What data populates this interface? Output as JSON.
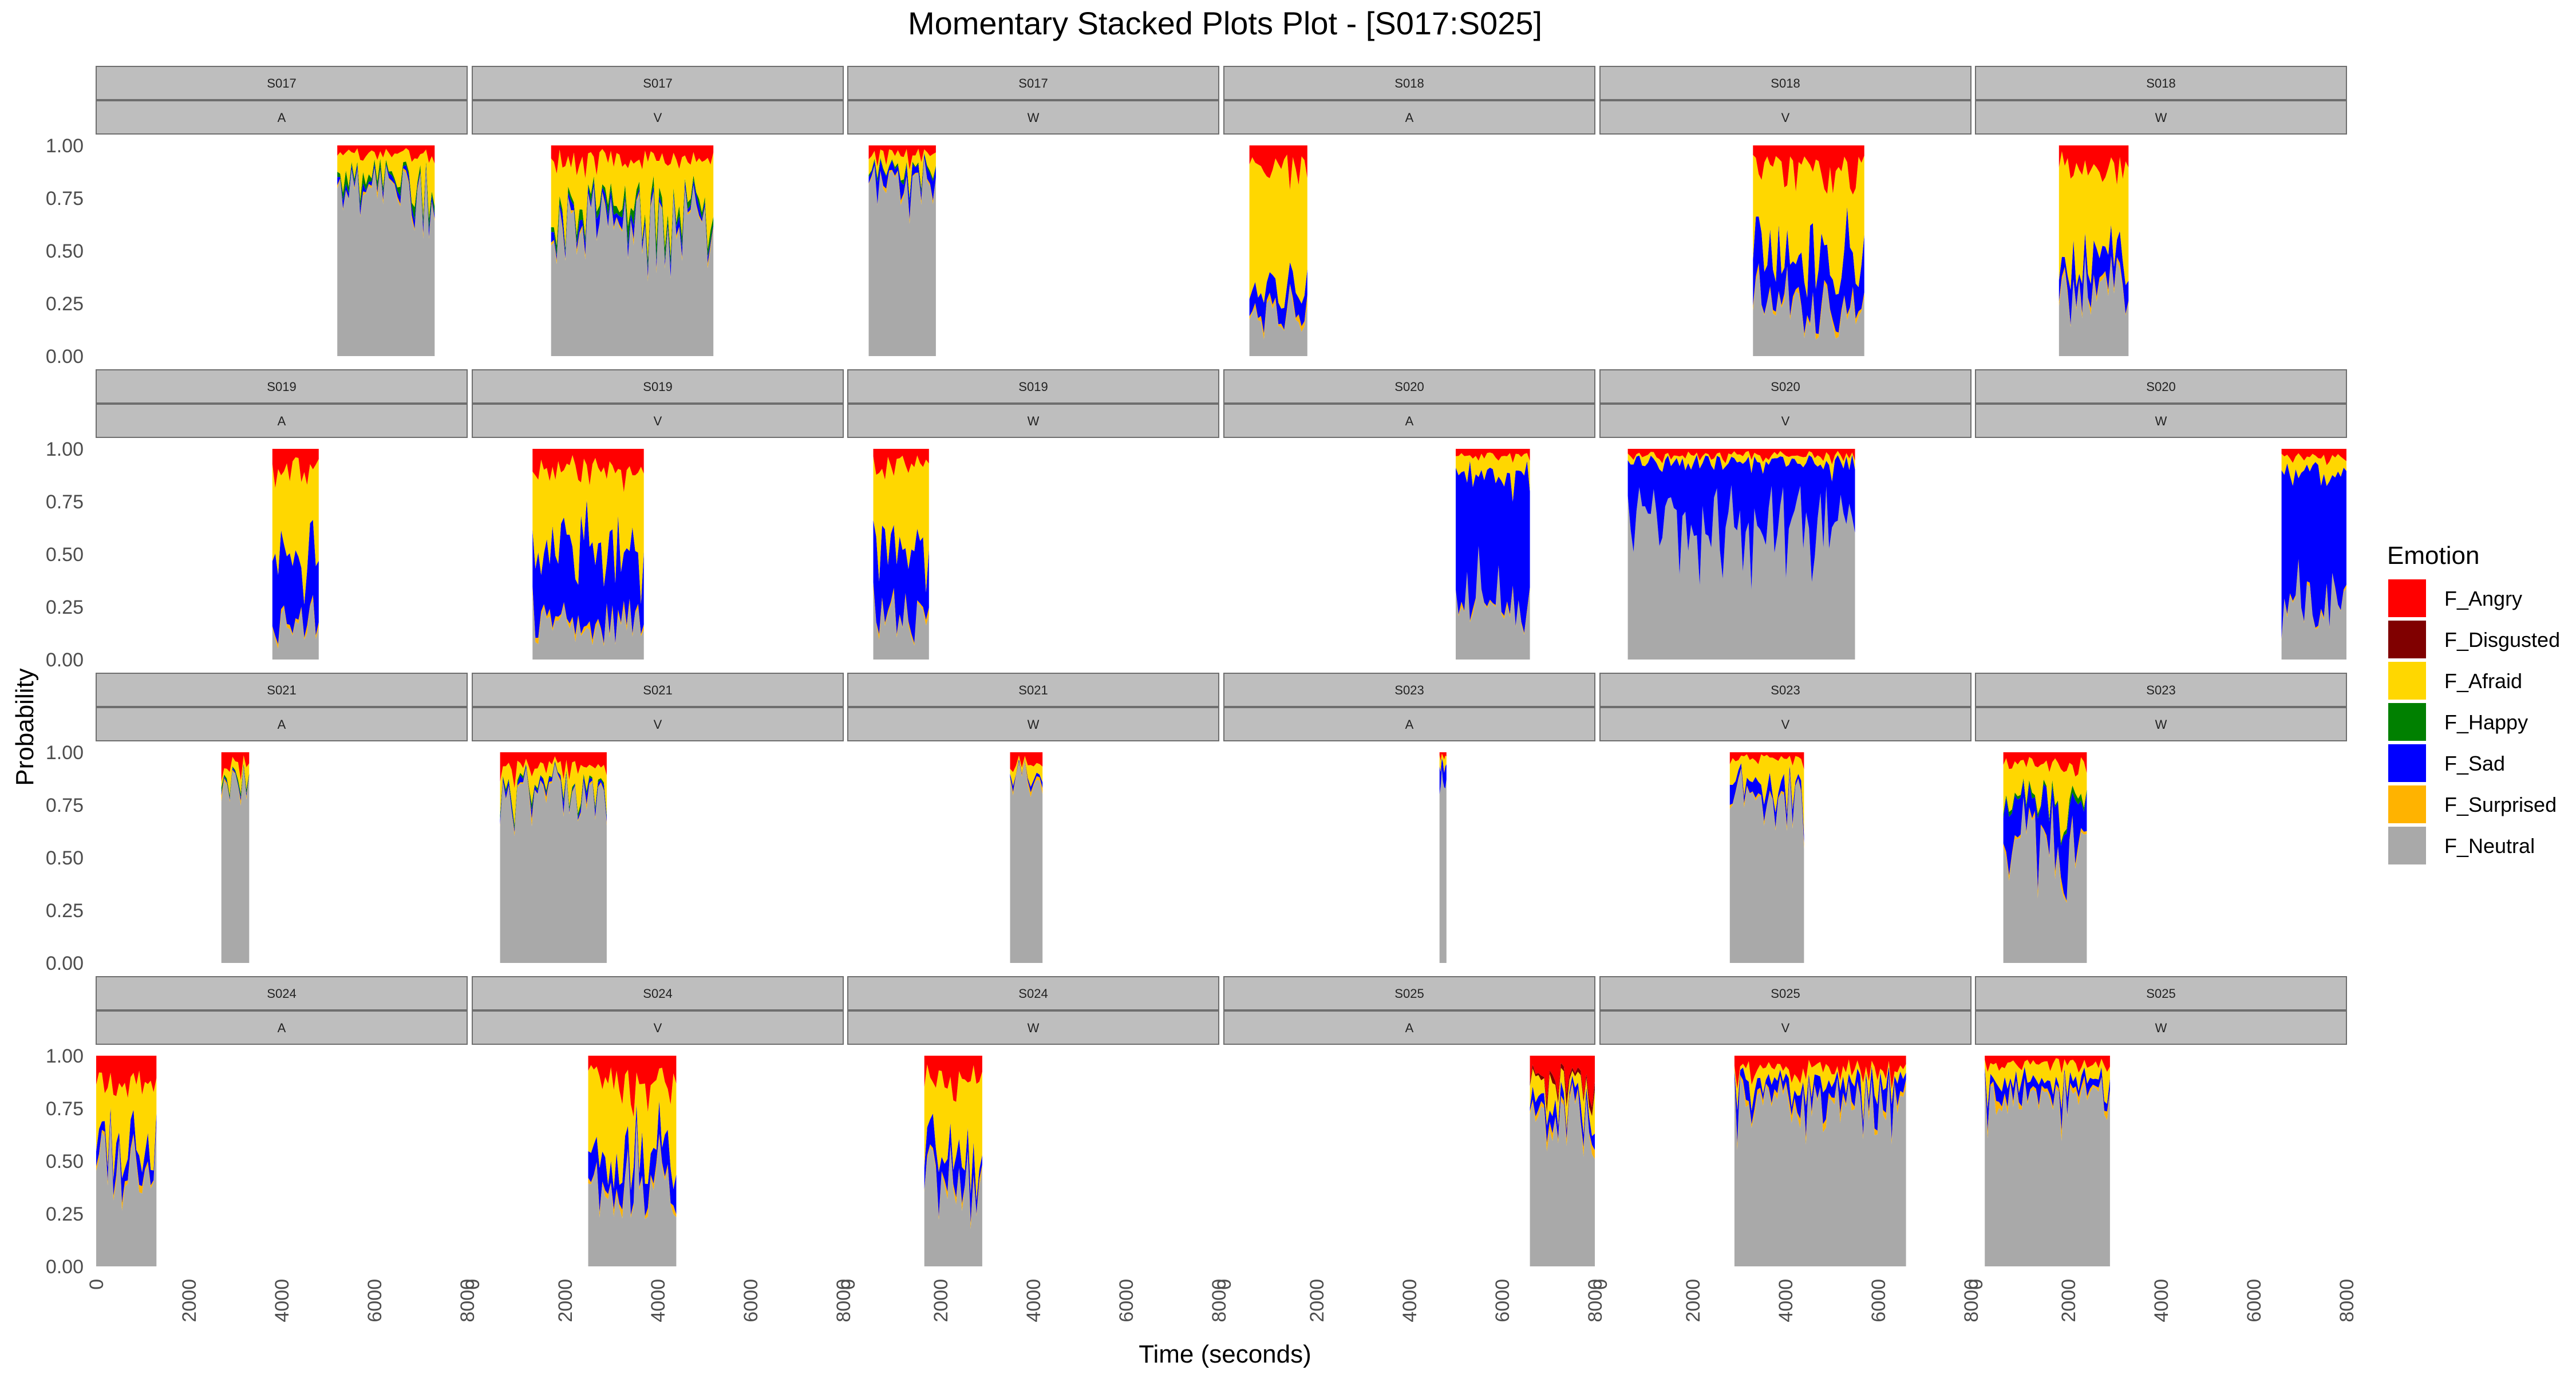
{
  "chart_data": {
    "type": "area",
    "title": "Momentary Stacked Plots Plot - [S017:S025]",
    "xlabel": "Time (seconds)",
    "ylabel": "Probability",
    "xlim": [
      0,
      8000
    ],
    "ylim": [
      0,
      1
    ],
    "x_ticks": [
      "0",
      "2000",
      "4000",
      "6000",
      "8000"
    ],
    "y_ticks": [
      "0.00",
      "0.25",
      "0.50",
      "0.75",
      "1.00"
    ],
    "legend": {
      "title": "Emotion",
      "position": "right",
      "items": [
        {
          "name": "F_Angry",
          "color": "#ff0000"
        },
        {
          "name": "F_Disgusted",
          "color": "#800000"
        },
        {
          "name": "F_Afraid",
          "color": "#ffd700"
        },
        {
          "name": "F_Happy",
          "color": "#008000"
        },
        {
          "name": "F_Sad",
          "color": "#0000ff"
        },
        {
          "name": "F_Surprised",
          "color": "#ffb300"
        },
        {
          "name": "F_Neutral",
          "color": "#a9a9a9"
        }
      ]
    },
    "stack_order_bottom_to_top": [
      "F_Neutral",
      "F_Surprised",
      "F_Sad",
      "F_Happy",
      "F_Afraid",
      "F_Disgusted",
      "F_Angry"
    ],
    "panels": [
      {
        "subject": "S017",
        "condition": "A",
        "x_start": 5200,
        "x_end": 7300,
        "mean": {
          "F_Angry": 0.04,
          "F_Disgusted": 0.0,
          "F_Afraid": 0.12,
          "F_Happy": 0.03,
          "F_Sad": 0.02,
          "F_Surprised": 0.01,
          "F_Neutral": 0.78
        }
      },
      {
        "subject": "S017",
        "condition": "V",
        "x_start": 1700,
        "x_end": 5200,
        "mean": {
          "F_Angry": 0.06,
          "F_Disgusted": 0.0,
          "F_Afraid": 0.22,
          "F_Happy": 0.03,
          "F_Sad": 0.03,
          "F_Surprised": 0.01,
          "F_Neutral": 0.65
        }
      },
      {
        "subject": "S017",
        "condition": "W",
        "x_start": 450,
        "x_end": 1900,
        "mean": {
          "F_Angry": 0.05,
          "F_Disgusted": 0.0,
          "F_Afraid": 0.06,
          "F_Happy": 0.01,
          "F_Sad": 0.05,
          "F_Surprised": 0.01,
          "F_Neutral": 0.82
        }
      },
      {
        "subject": "S018",
        "condition": "A",
        "x_start": 550,
        "x_end": 1800,
        "mean": {
          "F_Angry": 0.12,
          "F_Disgusted": 0.0,
          "F_Afraid": 0.58,
          "F_Happy": 0.0,
          "F_Sad": 0.1,
          "F_Surprised": 0.02,
          "F_Neutral": 0.18
        }
      },
      {
        "subject": "S018",
        "condition": "V",
        "x_start": 3300,
        "x_end": 5700,
        "mean": {
          "F_Angry": 0.12,
          "F_Disgusted": 0.0,
          "F_Afraid": 0.42,
          "F_Happy": 0.0,
          "F_Sad": 0.22,
          "F_Surprised": 0.02,
          "F_Neutral": 0.22
        }
      },
      {
        "subject": "S018",
        "condition": "W",
        "x_start": 1800,
        "x_end": 3300,
        "mean": {
          "F_Angry": 0.1,
          "F_Disgusted": 0.0,
          "F_Afraid": 0.5,
          "F_Happy": 0.0,
          "F_Sad": 0.1,
          "F_Surprised": 0.02,
          "F_Neutral": 0.28
        }
      },
      {
        "subject": "S019",
        "condition": "A",
        "x_start": 3800,
        "x_end": 4800,
        "mean": {
          "F_Angry": 0.1,
          "F_Disgusted": 0.0,
          "F_Afraid": 0.42,
          "F_Happy": 0.0,
          "F_Sad": 0.28,
          "F_Surprised": 0.02,
          "F_Neutral": 0.18
        }
      },
      {
        "subject": "S019",
        "condition": "V",
        "x_start": 1300,
        "x_end": 3700,
        "mean": {
          "F_Angry": 0.1,
          "F_Disgusted": 0.0,
          "F_Afraid": 0.4,
          "F_Happy": 0.0,
          "F_Sad": 0.32,
          "F_Surprised": 0.02,
          "F_Neutral": 0.16
        }
      },
      {
        "subject": "S019",
        "condition": "W",
        "x_start": 550,
        "x_end": 1750,
        "mean": {
          "F_Angry": 0.08,
          "F_Disgusted": 0.0,
          "F_Afraid": 0.4,
          "F_Happy": 0.0,
          "F_Sad": 0.3,
          "F_Surprised": 0.02,
          "F_Neutral": 0.2
        }
      },
      {
        "subject": "S020",
        "condition": "A",
        "x_start": 5000,
        "x_end": 6600,
        "mean": {
          "F_Angry": 0.03,
          "F_Disgusted": 0.0,
          "F_Afraid": 0.08,
          "F_Happy": 0.0,
          "F_Sad": 0.62,
          "F_Surprised": 0.01,
          "F_Neutral": 0.26
        }
      },
      {
        "subject": "S020",
        "condition": "V",
        "x_start": 600,
        "x_end": 5500,
        "mean": {
          "F_Angry": 0.03,
          "F_Disgusted": 0.0,
          "F_Afraid": 0.03,
          "F_Happy": 0.0,
          "F_Sad": 0.3,
          "F_Surprised": 0.0,
          "F_Neutral": 0.64
        }
      },
      {
        "subject": "S020",
        "condition": "W",
        "x_start": 6600,
        "x_end": 8000,
        "mean": {
          "F_Angry": 0.04,
          "F_Disgusted": 0.0,
          "F_Afraid": 0.08,
          "F_Happy": 0.0,
          "F_Sad": 0.58,
          "F_Surprised": 0.01,
          "F_Neutral": 0.29
        }
      },
      {
        "subject": "S021",
        "condition": "A",
        "x_start": 2700,
        "x_end": 3300,
        "mean": {
          "F_Angry": 0.05,
          "F_Disgusted": 0.0,
          "F_Afraid": 0.04,
          "F_Happy": 0.01,
          "F_Sad": 0.01,
          "F_Surprised": 0.01,
          "F_Neutral": 0.88
        }
      },
      {
        "subject": "S021",
        "condition": "V",
        "x_start": 600,
        "x_end": 2900,
        "mean": {
          "F_Angry": 0.06,
          "F_Disgusted": 0.0,
          "F_Afraid": 0.08,
          "F_Happy": 0.01,
          "F_Sad": 0.02,
          "F_Surprised": 0.01,
          "F_Neutral": 0.82
        }
      },
      {
        "subject": "S021",
        "condition": "W",
        "x_start": 3500,
        "x_end": 4200,
        "mean": {
          "F_Angry": 0.05,
          "F_Disgusted": 0.0,
          "F_Afraid": 0.04,
          "F_Happy": 0.0,
          "F_Sad": 0.01,
          "F_Surprised": 0.01,
          "F_Neutral": 0.89
        }
      },
      {
        "subject": "S023",
        "condition": "A",
        "x_start": 4650,
        "x_end": 4800,
        "mean": {
          "F_Angry": 0.02,
          "F_Disgusted": 0.0,
          "F_Afraid": 0.03,
          "F_Happy": 0.0,
          "F_Sad": 0.08,
          "F_Surprised": 0.0,
          "F_Neutral": 0.87
        }
      },
      {
        "subject": "S023",
        "condition": "V",
        "x_start": 2800,
        "x_end": 4400,
        "mean": {
          "F_Angry": 0.03,
          "F_Disgusted": 0.0,
          "F_Afraid": 0.12,
          "F_Happy": 0.0,
          "F_Sad": 0.05,
          "F_Surprised": 0.01,
          "F_Neutral": 0.79
        }
      },
      {
        "subject": "S023",
        "condition": "W",
        "x_start": 600,
        "x_end": 2400,
        "mean": {
          "F_Angry": 0.06,
          "F_Disgusted": 0.0,
          "F_Afraid": 0.16,
          "F_Happy": 0.02,
          "F_Sad": 0.18,
          "F_Surprised": 0.02,
          "F_Neutral": 0.56
        }
      },
      {
        "subject": "S024",
        "condition": "A",
        "x_start": 0,
        "x_end": 1300,
        "mean": {
          "F_Angry": 0.14,
          "F_Disgusted": 0.0,
          "F_Afraid": 0.3,
          "F_Happy": 0.0,
          "F_Sad": 0.08,
          "F_Surprised": 0.02,
          "F_Neutral": 0.46
        }
      },
      {
        "subject": "S024",
        "condition": "V",
        "x_start": 2500,
        "x_end": 4400,
        "mean": {
          "F_Angry": 0.12,
          "F_Disgusted": 0.0,
          "F_Afraid": 0.34,
          "F_Happy": 0.0,
          "F_Sad": 0.12,
          "F_Surprised": 0.02,
          "F_Neutral": 0.4
        }
      },
      {
        "subject": "S024",
        "condition": "W",
        "x_start": 1650,
        "x_end": 2900,
        "mean": {
          "F_Angry": 0.12,
          "F_Disgusted": 0.0,
          "F_Afraid": 0.36,
          "F_Happy": 0.0,
          "F_Sad": 0.1,
          "F_Surprised": 0.02,
          "F_Neutral": 0.4
        }
      },
      {
        "subject": "S025",
        "condition": "A",
        "x_start": 6600,
        "x_end": 8000,
        "mean": {
          "F_Angry": 0.1,
          "F_Disgusted": 0.02,
          "F_Afraid": 0.08,
          "F_Happy": 0.0,
          "F_Sad": 0.06,
          "F_Surprised": 0.02,
          "F_Neutral": 0.72
        }
      },
      {
        "subject": "S025",
        "condition": "V",
        "x_start": 2900,
        "x_end": 6600,
        "mean": {
          "F_Angry": 0.06,
          "F_Disgusted": 0.0,
          "F_Afraid": 0.06,
          "F_Happy": 0.0,
          "F_Sad": 0.06,
          "F_Surprised": 0.02,
          "F_Neutral": 0.8
        }
      },
      {
        "subject": "S025",
        "condition": "W",
        "x_start": 200,
        "x_end": 2900,
        "mean": {
          "F_Angry": 0.04,
          "F_Disgusted": 0.0,
          "F_Afraid": 0.08,
          "F_Happy": 0.0,
          "F_Sad": 0.05,
          "F_Surprised": 0.02,
          "F_Neutral": 0.81
        }
      }
    ]
  }
}
